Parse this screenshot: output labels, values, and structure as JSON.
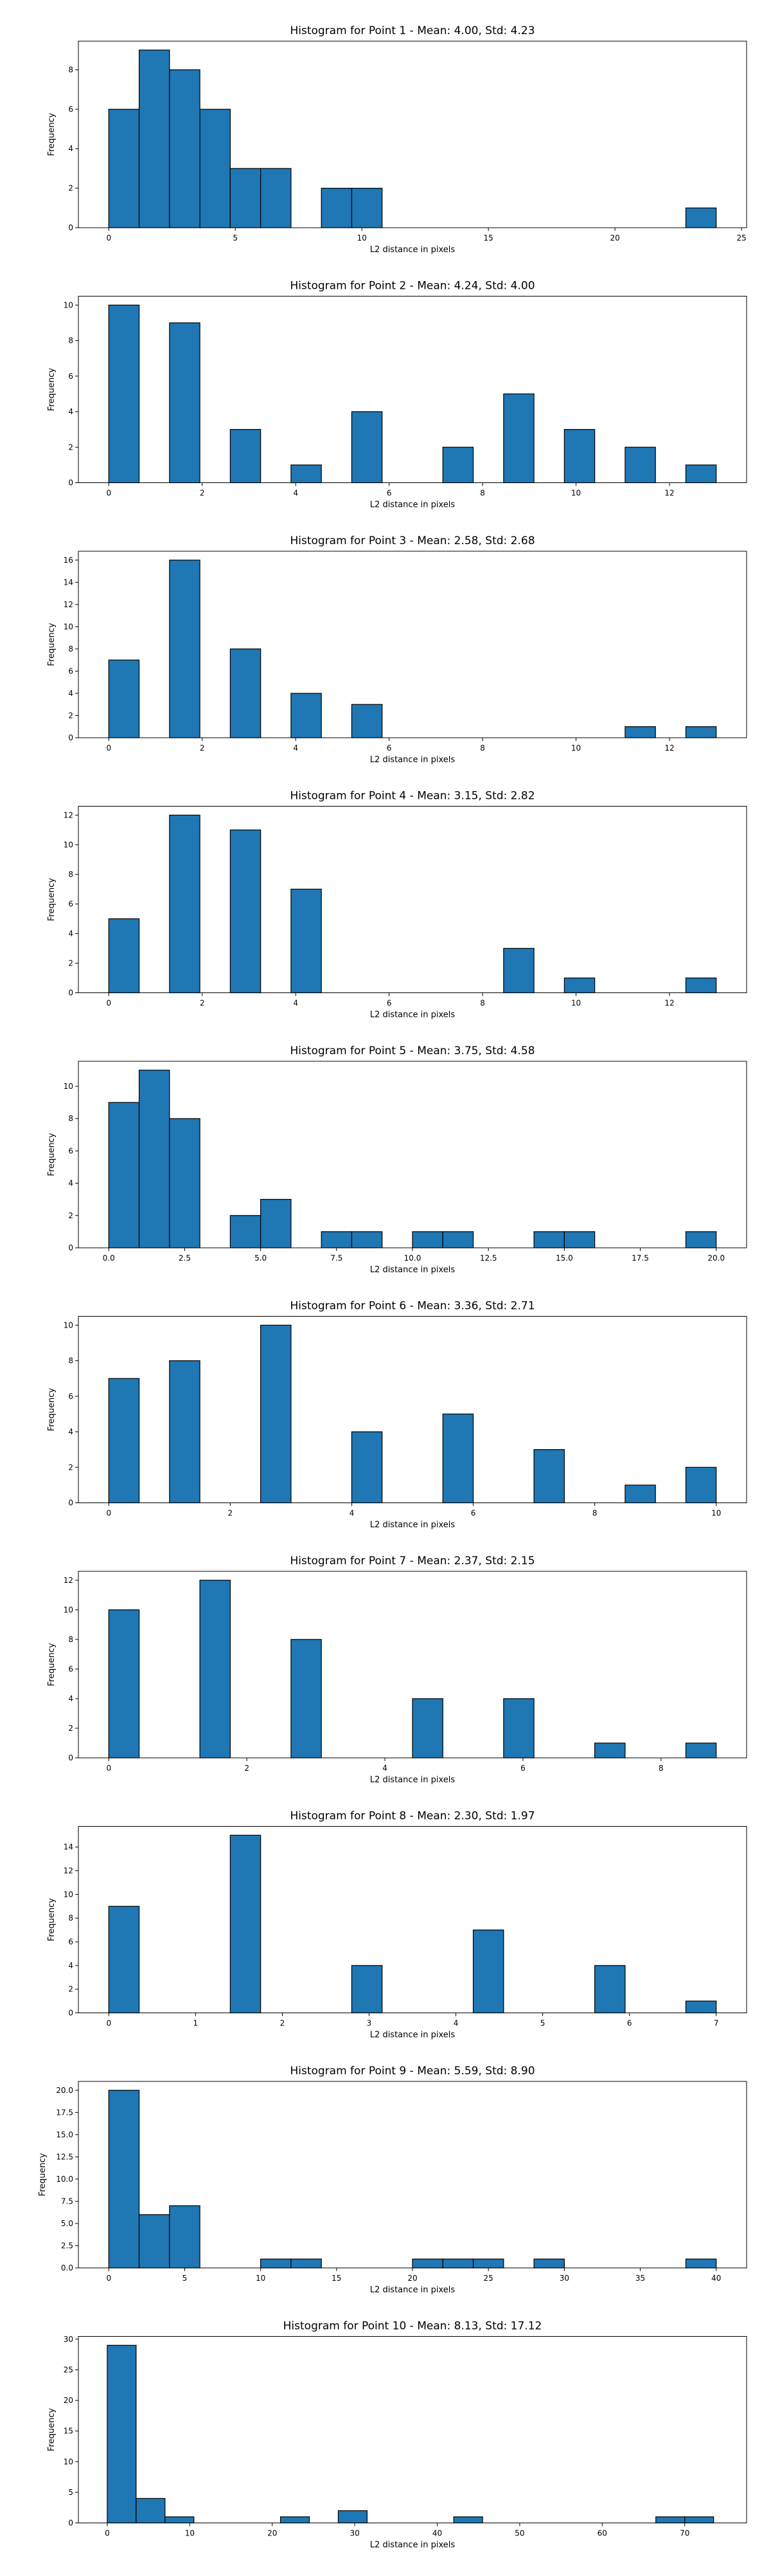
{
  "chart_data": [
    {
      "type": "bar",
      "title": "Histogram for Point 1 - Mean: 4.00, Std: 4.23",
      "xlabel": "L2 distance in pixels",
      "ylabel": "Frequency",
      "xlim": [
        -1.2,
        25.2
      ],
      "ylim": [
        0,
        9.45
      ],
      "xticks": [
        0,
        5,
        10,
        15,
        20,
        25
      ],
      "yticks": [
        0,
        2,
        4,
        6,
        8
      ],
      "bins": [
        {
          "x0": 0.0,
          "x1": 1.2,
          "value": 6
        },
        {
          "x0": 1.2,
          "x1": 2.4,
          "value": 9
        },
        {
          "x0": 2.4,
          "x1": 3.6,
          "value": 8
        },
        {
          "x0": 3.6,
          "x1": 4.8,
          "value": 6
        },
        {
          "x0": 4.8,
          "x1": 6.0,
          "value": 3
        },
        {
          "x0": 6.0,
          "x1": 7.2,
          "value": 3
        },
        {
          "x0": 8.4,
          "x1": 9.6,
          "value": 2
        },
        {
          "x0": 9.6,
          "x1": 10.8,
          "value": 2
        },
        {
          "x0": 22.8,
          "x1": 24.0,
          "value": 1
        }
      ]
    },
    {
      "type": "bar",
      "title": "Histogram for Point 2 - Mean: 4.24, Std: 4.00",
      "xlabel": "L2 distance in pixels",
      "ylabel": "Frequency",
      "xlim": [
        -0.65,
        13.65
      ],
      "ylim": [
        0,
        10.5
      ],
      "xticks": [
        0,
        2,
        4,
        6,
        8,
        10,
        12
      ],
      "yticks": [
        0,
        2,
        4,
        6,
        8,
        10
      ],
      "bins": [
        {
          "x0": 0.0,
          "x1": 0.65,
          "value": 10
        },
        {
          "x0": 1.3,
          "x1": 1.95,
          "value": 9
        },
        {
          "x0": 2.6,
          "x1": 3.25,
          "value": 3
        },
        {
          "x0": 3.9,
          "x1": 4.55,
          "value": 1
        },
        {
          "x0": 5.2,
          "x1": 5.85,
          "value": 4
        },
        {
          "x0": 7.15,
          "x1": 7.8,
          "value": 2
        },
        {
          "x0": 8.45,
          "x1": 9.1,
          "value": 5
        },
        {
          "x0": 9.75,
          "x1": 10.4,
          "value": 3
        },
        {
          "x0": 11.05,
          "x1": 11.7,
          "value": 2
        },
        {
          "x0": 12.35,
          "x1": 13.0,
          "value": 1
        }
      ]
    },
    {
      "type": "bar",
      "title": "Histogram for Point 3 - Mean: 2.58, Std: 2.68",
      "xlabel": "L2 distance in pixels",
      "ylabel": "Frequency",
      "xlim": [
        -0.65,
        13.65
      ],
      "ylim": [
        0,
        16.8
      ],
      "xticks": [
        0,
        2,
        4,
        6,
        8,
        10,
        12
      ],
      "yticks": [
        0,
        2,
        4,
        6,
        8,
        10,
        12,
        14,
        16
      ],
      "bins": [
        {
          "x0": 0.0,
          "x1": 0.65,
          "value": 7
        },
        {
          "x0": 1.3,
          "x1": 1.95,
          "value": 16
        },
        {
          "x0": 2.6,
          "x1": 3.25,
          "value": 8
        },
        {
          "x0": 3.9,
          "x1": 4.55,
          "value": 4
        },
        {
          "x0": 5.2,
          "x1": 5.85,
          "value": 3
        },
        {
          "x0": 11.05,
          "x1": 11.7,
          "value": 1
        },
        {
          "x0": 12.35,
          "x1": 13.0,
          "value": 1
        }
      ]
    },
    {
      "type": "bar",
      "title": "Histogram for Point 4 - Mean: 3.15, Std: 2.82",
      "xlabel": "L2 distance in pixels",
      "ylabel": "Frequency",
      "xlim": [
        -0.65,
        13.65
      ],
      "ylim": [
        0,
        12.6
      ],
      "xticks": [
        0,
        2,
        4,
        6,
        8,
        10,
        12
      ],
      "yticks": [
        0,
        2,
        4,
        6,
        8,
        10,
        12
      ],
      "bins": [
        {
          "x0": 0.0,
          "x1": 0.65,
          "value": 5
        },
        {
          "x0": 1.3,
          "x1": 1.95,
          "value": 12
        },
        {
          "x0": 2.6,
          "x1": 3.25,
          "value": 11
        },
        {
          "x0": 3.9,
          "x1": 4.55,
          "value": 7
        },
        {
          "x0": 8.45,
          "x1": 9.1,
          "value": 3
        },
        {
          "x0": 9.75,
          "x1": 10.4,
          "value": 1
        },
        {
          "x0": 12.35,
          "x1": 13.0,
          "value": 1
        }
      ]
    },
    {
      "type": "bar",
      "title": "Histogram for Point 5 - Mean: 3.75, Std: 4.58",
      "xlabel": "L2 distance in pixels",
      "ylabel": "Frequency",
      "xlim": [
        -1.0,
        21.0
      ],
      "ylim": [
        0,
        11.55
      ],
      "xticks": [
        0.0,
        2.5,
        5.0,
        7.5,
        10.0,
        12.5,
        15.0,
        17.5,
        20.0
      ],
      "xtick_labels": [
        "0.0",
        "2.5",
        "5.0",
        "7.5",
        "10.0",
        "12.5",
        "15.0",
        "17.5",
        "20.0"
      ],
      "yticks": [
        0,
        2,
        4,
        6,
        8,
        10
      ],
      "bins": [
        {
          "x0": 0.0,
          "x1": 1.0,
          "value": 9
        },
        {
          "x0": 1.0,
          "x1": 2.0,
          "value": 11
        },
        {
          "x0": 2.0,
          "x1": 3.0,
          "value": 8
        },
        {
          "x0": 4.0,
          "x1": 5.0,
          "value": 2
        },
        {
          "x0": 5.0,
          "x1": 6.0,
          "value": 3
        },
        {
          "x0": 7.0,
          "x1": 8.0,
          "value": 1
        },
        {
          "x0": 8.0,
          "x1": 9.0,
          "value": 1
        },
        {
          "x0": 10.0,
          "x1": 11.0,
          "value": 1
        },
        {
          "x0": 11.0,
          "x1": 12.0,
          "value": 1
        },
        {
          "x0": 14.0,
          "x1": 15.0,
          "value": 1
        },
        {
          "x0": 15.0,
          "x1": 16.0,
          "value": 1
        },
        {
          "x0": 19.0,
          "x1": 20.0,
          "value": 1
        }
      ]
    },
    {
      "type": "bar",
      "title": "Histogram for Point 6 - Mean: 3.36, Std: 2.71",
      "xlabel": "L2 distance in pixels",
      "ylabel": "Frequency",
      "xlim": [
        -0.5,
        10.5
      ],
      "ylim": [
        0,
        10.5
      ],
      "xticks": [
        0,
        2,
        4,
        6,
        8,
        10
      ],
      "yticks": [
        0,
        2,
        4,
        6,
        8,
        10
      ],
      "bins": [
        {
          "x0": 0.0,
          "x1": 0.5,
          "value": 7
        },
        {
          "x0": 1.0,
          "x1": 1.5,
          "value": 8
        },
        {
          "x0": 2.5,
          "x1": 3.0,
          "value": 10
        },
        {
          "x0": 4.0,
          "x1": 4.5,
          "value": 4
        },
        {
          "x0": 5.5,
          "x1": 6.0,
          "value": 5
        },
        {
          "x0": 7.0,
          "x1": 7.5,
          "value": 3
        },
        {
          "x0": 8.5,
          "x1": 9.0,
          "value": 1
        },
        {
          "x0": 9.5,
          "x1": 10.0,
          "value": 2
        }
      ]
    },
    {
      "type": "bar",
      "title": "Histogram for Point 7 - Mean: 2.37, Std: 2.15",
      "xlabel": "L2 distance in pixels",
      "ylabel": "Frequency",
      "xlim": [
        -0.44,
        9.24
      ],
      "ylim": [
        0,
        12.6
      ],
      "xticks": [
        0,
        2,
        4,
        6,
        8
      ],
      "yticks": [
        0,
        2,
        4,
        6,
        8,
        10,
        12
      ],
      "bins": [
        {
          "x0": 0.0,
          "x1": 0.44,
          "value": 10
        },
        {
          "x0": 1.32,
          "x1": 1.76,
          "value": 12
        },
        {
          "x0": 2.64,
          "x1": 3.08,
          "value": 8
        },
        {
          "x0": 4.4,
          "x1": 4.84,
          "value": 4
        },
        {
          "x0": 5.72,
          "x1": 6.16,
          "value": 4
        },
        {
          "x0": 7.04,
          "x1": 7.48,
          "value": 1
        },
        {
          "x0": 8.36,
          "x1": 8.8,
          "value": 1
        }
      ]
    },
    {
      "type": "bar",
      "title": "Histogram for Point 8 - Mean: 2.30, Std: 1.97",
      "xlabel": "L2 distance in pixels",
      "ylabel": "Frequency",
      "xlim": [
        -0.35,
        7.35
      ],
      "ylim": [
        0,
        15.75
      ],
      "xticks": [
        0,
        1,
        2,
        3,
        4,
        5,
        6,
        7
      ],
      "yticks": [
        0,
        2,
        4,
        6,
        8,
        10,
        12,
        14
      ],
      "bins": [
        {
          "x0": 0.0,
          "x1": 0.35,
          "value": 9
        },
        {
          "x0": 1.4,
          "x1": 1.75,
          "value": 15
        },
        {
          "x0": 2.8,
          "x1": 3.15,
          "value": 4
        },
        {
          "x0": 4.2,
          "x1": 4.55,
          "value": 7
        },
        {
          "x0": 5.6,
          "x1": 5.95,
          "value": 4
        },
        {
          "x0": 6.65,
          "x1": 7.0,
          "value": 1
        }
      ]
    },
    {
      "type": "bar",
      "title": "Histogram for Point 9 - Mean: 5.59, Std: 8.90",
      "xlabel": "L2 distance in pixels",
      "ylabel": "Frequency",
      "xlim": [
        -2.0,
        42.0
      ],
      "ylim": [
        0,
        21.0
      ],
      "xticks": [
        0,
        5,
        10,
        15,
        20,
        25,
        30,
        35,
        40
      ],
      "yticks": [
        0.0,
        2.5,
        5.0,
        7.5,
        10.0,
        12.5,
        15.0,
        17.5,
        20.0
      ],
      "ytick_labels": [
        "0.0",
        "2.5",
        "5.0",
        "7.5",
        "10.0",
        "12.5",
        "15.0",
        "17.5",
        "20.0"
      ],
      "bins": [
        {
          "x0": 0.0,
          "x1": 2.0,
          "value": 20
        },
        {
          "x0": 2.0,
          "x1": 4.0,
          "value": 6
        },
        {
          "x0": 4.0,
          "x1": 6.0,
          "value": 7
        },
        {
          "x0": 10.0,
          "x1": 12.0,
          "value": 1
        },
        {
          "x0": 12.0,
          "x1": 14.0,
          "value": 1
        },
        {
          "x0": 20.0,
          "x1": 22.0,
          "value": 1
        },
        {
          "x0": 22.0,
          "x1": 24.0,
          "value": 1
        },
        {
          "x0": 24.0,
          "x1": 26.0,
          "value": 1
        },
        {
          "x0": 28.0,
          "x1": 30.0,
          "value": 1
        },
        {
          "x0": 38.0,
          "x1": 40.0,
          "value": 1
        }
      ]
    },
    {
      "type": "bar",
      "title": "Histogram for Point 10 - Mean: 8.13, Std: 17.12",
      "xlabel": "L2 distance in pixels",
      "ylabel": "Frequency",
      "xlim": [
        -3.5,
        77.5
      ],
      "ylim": [
        0,
        30.45
      ],
      "xticks": [
        0,
        10,
        20,
        30,
        40,
        50,
        60,
        70
      ],
      "yticks": [
        0,
        5,
        10,
        15,
        20,
        25,
        30
      ],
      "bins": [
        {
          "x0": 0.0,
          "x1": 3.5,
          "value": 29
        },
        {
          "x0": 3.5,
          "x1": 7.0,
          "value": 4
        },
        {
          "x0": 7.0,
          "x1": 10.5,
          "value": 1
        },
        {
          "x0": 21.0,
          "x1": 24.5,
          "value": 1
        },
        {
          "x0": 28.0,
          "x1": 31.5,
          "value": 2
        },
        {
          "x0": 42.0,
          "x1": 45.5,
          "value": 1
        },
        {
          "x0": 66.5,
          "x1": 70.0,
          "value": 1
        },
        {
          "x0": 70.0,
          "x1": 73.5,
          "value": 1
        }
      ]
    }
  ]
}
